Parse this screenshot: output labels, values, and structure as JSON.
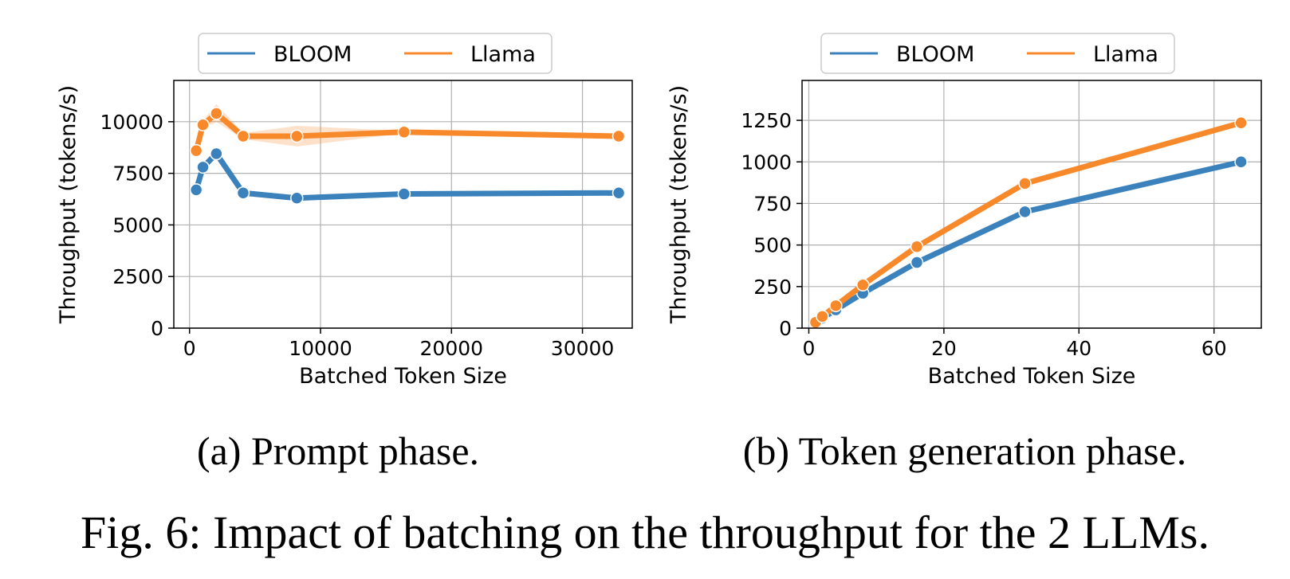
{
  "chart_data": [
    {
      "type": "line",
      "caption": "(a) Prompt phase.",
      "xlabel": "Batched Token Size",
      "ylabel": "Throughput (tokens/s)",
      "xlim": [
        -1200,
        33800
      ],
      "ylim": [
        0,
        12000
      ],
      "xticks": [
        0,
        10000,
        20000,
        30000
      ],
      "yticks": [
        0,
        2500,
        5000,
        7500,
        10000
      ],
      "grid": true,
      "legend": "top-center",
      "x": [
        512,
        1024,
        2048,
        4096,
        8192,
        16384,
        32768
      ],
      "series": [
        {
          "name": "BLOOM",
          "color": "#3b82bd",
          "values": [
            6700,
            7800,
            8450,
            6550,
            6300,
            6500,
            6550
          ]
        },
        {
          "name": "Llama",
          "color": "#f8892b",
          "values": [
            8600,
            9850,
            10400,
            9300,
            9300,
            9500,
            9300
          ],
          "band_lower": [
            8450,
            9650,
            10000,
            9150,
            8800,
            9450,
            9250
          ],
          "band_upper": [
            8750,
            10050,
            10850,
            9450,
            9800,
            9550,
            9350
          ]
        }
      ]
    },
    {
      "type": "line",
      "caption": "(b) Token generation phase.",
      "xlabel": "Batched Token Size",
      "ylabel": "Throughput (tokens/s)",
      "xlim": [
        -1,
        67
      ],
      "ylim": [
        0,
        1490
      ],
      "xticks": [
        0,
        20,
        40,
        60
      ],
      "yticks": [
        0,
        250,
        500,
        750,
        1000,
        1250
      ],
      "grid": true,
      "legend": "top-center",
      "x": [
        1,
        2,
        4,
        8,
        16,
        32,
        64
      ],
      "series": [
        {
          "name": "BLOOM",
          "color": "#3b82bd",
          "values": [
            30,
            60,
            110,
            210,
            395,
            700,
            1000
          ]
        },
        {
          "name": "Llama",
          "color": "#f8892b",
          "values": [
            35,
            70,
            135,
            260,
            490,
            870,
            1235
          ]
        }
      ]
    }
  ],
  "figure_caption": "Fig. 6: Impact of batching on the throughput for the 2 LLMs."
}
